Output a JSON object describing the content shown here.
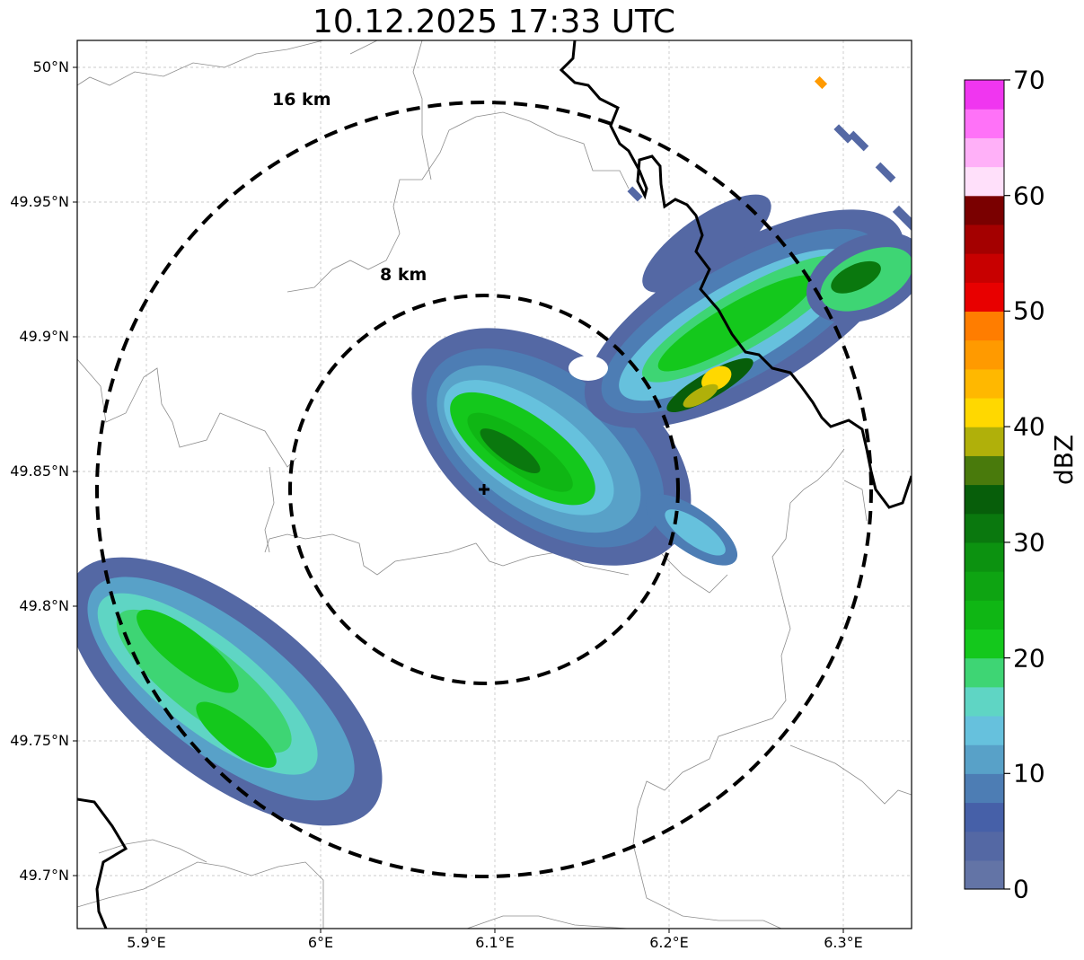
{
  "title": "10.12.2025 17:33 UTC",
  "axes": {
    "lon_ticks": [
      "5.9°E",
      "6°E",
      "6.1°E",
      "6.2°E",
      "6.3°E"
    ],
    "lat_ticks": [
      "50°N",
      "49.95°N",
      "49.9°N",
      "49.85°N",
      "49.8°N",
      "49.75°N",
      "49.7°N"
    ],
    "grid": true
  },
  "range_rings": [
    {
      "label": "16 km",
      "radius_km": 16
    },
    {
      "label": "8 km",
      "radius_km": 8
    }
  ],
  "radar_site": {
    "marker": "plus-icon"
  },
  "colorbar": {
    "label": "dBZ",
    "ticks": [
      "0",
      "10",
      "20",
      "30",
      "40",
      "50",
      "60",
      "70"
    ],
    "colors": [
      "#6374a6",
      "#5468a4",
      "#4660a8",
      "#4d7db4",
      "#58a1c8",
      "#66c1dd",
      "#5fd5c4",
      "#3ed574",
      "#14c81c",
      "#0fb614",
      "#0ea412",
      "#0c9210",
      "#0a780e",
      "#075e0a",
      "#497a0c",
      "#b0b00a",
      "#ffd800",
      "#ffb800",
      "#ff9a00",
      "#ff7d00",
      "#e80000",
      "#c80000",
      "#a40000",
      "#7a0000",
      "#ffe0fa",
      "#ffb0f8",
      "#ff72f8",
      "#f036f0"
    ]
  }
}
